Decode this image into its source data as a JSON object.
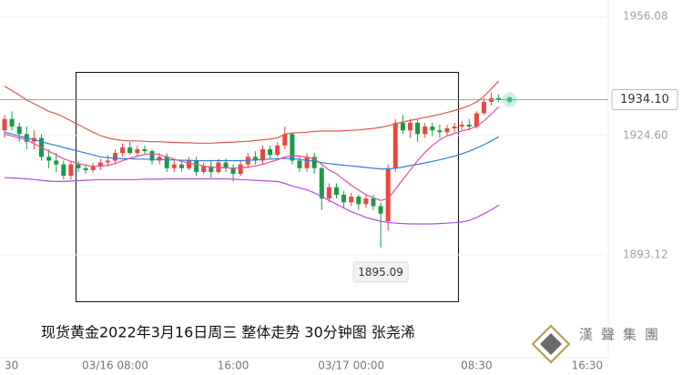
{
  "chart_data": {
    "type": "candlestick",
    "title": "现货黄金2022年3月16日周三  整体走势  30分钟图  张尧浠",
    "watermark": "漢聲集團",
    "categories": [
      "30",
      null,
      null,
      null,
      null,
      null,
      null,
      null,
      null,
      null,
      null,
      null,
      null,
      null,
      null,
      "03/16 08:00",
      null,
      null,
      null,
      null,
      null,
      null,
      null,
      null,
      null,
      null,
      null,
      null,
      null,
      null,
      null,
      "16:00",
      null,
      null,
      null,
      null,
      null,
      null,
      null,
      null,
      null,
      null,
      null,
      null,
      null,
      null,
      null,
      "03/17 00:00",
      null,
      null,
      null,
      null,
      null,
      null,
      null,
      null,
      null,
      null,
      null,
      null,
      null,
      null,
      null,
      null,
      "08:30",
      null,
      null,
      null,
      null,
      null,
      null,
      null,
      null,
      null,
      null,
      null,
      null,
      null,
      null,
      "16:30"
    ],
    "candles": {
      "up_color": "#e8483f",
      "down_color": "#1a9a48",
      "open": [
        1926,
        1929,
        1927,
        1925,
        1923,
        1924,
        1919,
        1918,
        1917,
        1914,
        1917,
        1916,
        1915.5,
        1916.5,
        1917.5,
        1918,
        1920,
        1921.5,
        1920,
        1921,
        1920.5,
        1918,
        1919,
        1916,
        1917,
        1916,
        1918,
        1915,
        1916.5,
        1915,
        1917.5,
        1916,
        1914.5,
        1917,
        1919,
        1918,
        1921,
        1919.5,
        1922,
        1925,
        1918,
        1916,
        1919,
        1916,
        1908,
        1911,
        1909,
        1907,
        1908.5,
        1906.5,
        1908,
        1906,
        1902,
        1916,
        1928,
        1926,
        1928,
        1925,
        1927,
        1926,
        1925.5,
        1926.5,
        1927,
        1927.5,
        1927,
        1930.5,
        1933.5,
        1934.5,
        null,
        null,
        null,
        null,
        null,
        null,
        null,
        null,
        null,
        null,
        null,
        null
      ],
      "high": [
        1930,
        1931,
        1928,
        1927,
        1926,
        1925,
        1921,
        1920,
        1918,
        1918,
        1918,
        1917,
        1917.5,
        1918.5,
        1919.5,
        1921,
        1922.5,
        1923,
        1922,
        1922,
        1921,
        1920,
        1920,
        1918,
        1918,
        1919,
        1919,
        1917.5,
        1918,
        1918.5,
        1918.5,
        1917,
        1918,
        1920,
        1920.5,
        1922,
        1922,
        1923,
        1927,
        1925.5,
        1919,
        1920,
        1920,
        1916.5,
        1912,
        1912,
        1910,
        1909.5,
        1909,
        1909,
        1909,
        1907,
        1917,
        1929,
        1930,
        1929,
        1929,
        1928,
        1928,
        1927.5,
        1927.5,
        1928,
        1928.5,
        1929,
        1931,
        1934.5,
        1936,
        1935.5,
        null,
        null,
        null,
        null,
        null,
        null,
        null,
        null,
        null,
        null,
        null,
        null
      ],
      "low": [
        1924,
        1926,
        1923,
        1921,
        1921,
        1918,
        1916,
        1915,
        1913,
        1913,
        1915,
        1914.5,
        1914.8,
        1915.5,
        1916.5,
        1917,
        1919,
        1919.5,
        1919,
        1919.5,
        1917,
        1917,
        1915,
        1915,
        1915,
        1915.5,
        1914,
        1914.5,
        1913.5,
        1914.5,
        1915,
        1912.5,
        1914,
        1916,
        1917,
        1917,
        1918.5,
        1919,
        1921,
        1917,
        1915,
        1915,
        1914.5,
        1905,
        1907,
        1908,
        1905.5,
        1906,
        1905,
        1905.5,
        1905,
        1895.09,
        1899.5,
        1915,
        1925,
        1924,
        1923,
        1924,
        1924.5,
        1924,
        1924.5,
        1925.5,
        1926,
        1926,
        1926.5,
        1930,
        1932.5,
        1933.5,
        null,
        null,
        null,
        null,
        null,
        null,
        null,
        null,
        null,
        null,
        null,
        null
      ],
      "close": [
        1929,
        1927,
        1925,
        1923,
        1924,
        1919,
        1918,
        1917,
        1914,
        1917,
        1916,
        1915.5,
        1916.5,
        1917.5,
        1918,
        1920,
        1921.5,
        1920,
        1921,
        1920.5,
        1918,
        1919,
        1916,
        1917,
        1916,
        1918,
        1915,
        1916.5,
        1915,
        1917.5,
        1916,
        1914.5,
        1917,
        1919,
        1918,
        1921,
        1919.5,
        1922,
        1925,
        1918,
        1916,
        1919,
        1916,
        1908,
        1911,
        1909,
        1907,
        1908.5,
        1906.5,
        1908,
        1906,
        1904,
        1916,
        1928,
        1926,
        1928,
        1925,
        1927,
        1926,
        1925.5,
        1926.5,
        1927,
        1927.5,
        1927,
        1930.5,
        1933.5,
        1934.5,
        1934.1,
        null,
        null,
        null,
        null,
        null,
        null,
        null,
        null,
        null,
        null,
        null,
        null
      ],
      "low_label": "1895.09",
      "last_close_label": "1934.10"
    },
    "lines": [
      {
        "color": "#dd5a4f",
        "values": [
          1937.6,
          1936.5,
          1935.3,
          1934,
          1933,
          1932,
          1931,
          1930.4,
          1929.5,
          1928.5,
          1927.5,
          1926.5,
          1925.5,
          1924.6,
          1924,
          1923.6,
          1923.3,
          1923.2,
          1923.2,
          1923.1,
          1923,
          1923,
          1922.9,
          1922.8,
          1922.7,
          1922.7,
          1922.6,
          1922.6,
          1922.6,
          1922.7,
          1922.8,
          1922.9,
          1923,
          1923.1,
          1923.3,
          1923.5,
          1923.7,
          1924,
          1925,
          1925.3,
          1925.4,
          1925.5,
          1925.7,
          1925.8,
          1925.8,
          1925.8,
          1925.9,
          1926,
          1926.1,
          1926.3,
          1926.5,
          1926.8,
          1927.2,
          1927.7,
          1928.2,
          1928.6,
          1929,
          1929.4,
          1929.8,
          1930.2,
          1930.7,
          1931.2,
          1931.8,
          1932.5,
          1933.5,
          1935,
          1937,
          1939,
          null,
          null,
          null,
          null,
          null,
          null,
          null,
          null,
          null,
          null,
          null,
          null
        ]
      },
      {
        "color": "#2f7fd6",
        "values": [
          1925.5,
          1925,
          1924.5,
          1924,
          1923.5,
          1923,
          1922.5,
          1922,
          1921.5,
          1921,
          1920.5,
          1920,
          1919.5,
          1919,
          1918.8,
          1918.6,
          1918.5,
          1918.5,
          1918.4,
          1918.4,
          1918.3,
          1918.3,
          1918.2,
          1918.2,
          1918.1,
          1918.1,
          1918,
          1918,
          1918,
          1918,
          1918,
          1918,
          1918,
          1918.1,
          1918.2,
          1918.3,
          1918.4,
          1918.5,
          1918.6,
          1918.5,
          1918.3,
          1918.1,
          1917.8,
          1917.5,
          1917.2,
          1917,
          1916.8,
          1916.6,
          1916.4,
          1916.2,
          1916,
          1915.8,
          1915.8,
          1916,
          1916.3,
          1916.7,
          1917,
          1917.4,
          1917.8,
          1918.2,
          1918.7,
          1919.2,
          1919.8,
          1920.5,
          1921.3,
          1922.2,
          1923.2,
          1924.3,
          null,
          null,
          null,
          null,
          null,
          null,
          null,
          null,
          null,
          null,
          null,
          null
        ]
      },
      {
        "color": "#b04fe0",
        "values": [
          1913.5,
          1913.4,
          1913.3,
          1913.2,
          1913,
          1912.8,
          1912.6,
          1912.5,
          1912.5,
          1912.6,
          1912.7,
          1912.8,
          1912.9,
          1913,
          1913,
          1913,
          1913,
          1913,
          1913,
          1913.1,
          1913.1,
          1913.1,
          1913.2,
          1913.2,
          1913.2,
          1913.2,
          1913.2,
          1913.2,
          1913.2,
          1913.2,
          1913.2,
          1913.1,
          1913,
          1912.9,
          1912.8,
          1912.7,
          1912.6,
          1912.5,
          1912,
          1911.3,
          1910.8,
          1910.3,
          1909.5,
          1908.5,
          1907.5,
          1906.5,
          1905.5,
          1904.5,
          1903.8,
          1903,
          1902.5,
          1902,
          1901.7,
          1901.5,
          1901.4,
          1901.3,
          1901.3,
          1901.3,
          1901.3,
          1901.4,
          1901.5,
          1901.6,
          1901.8,
          1902.2,
          1903,
          1904,
          1905,
          1906.3,
          null,
          null,
          null,
          null,
          null,
          null,
          null,
          null,
          null,
          null,
          null,
          null
        ]
      },
      {
        "color": "#e6509a",
        "values": [
          1925,
          1924.5,
          1924,
          1923.5,
          1922.5,
          1921.5,
          1920.5,
          1919.5,
          1918.5,
          1917.8,
          1917.2,
          1916.8,
          1916.5,
          1916.5,
          1916.8,
          1917.2,
          1918,
          1918.6,
          1919.2,
          1919.6,
          1919.8,
          1919.6,
          1919,
          1918.4,
          1917.8,
          1917.3,
          1917,
          1916.6,
          1916.3,
          1916.2,
          1916.1,
          1916,
          1916.1,
          1916.3,
          1916.6,
          1917,
          1917.6,
          1918.2,
          1919,
          1919.3,
          1919.2,
          1918.9,
          1918.5,
          1917,
          1915.5,
          1914.5,
          1913,
          1911.5,
          1910.2,
          1909,
          1908.2,
          1907.5,
          1908,
          1910.5,
          1913,
          1915.5,
          1918,
          1920.2,
          1922,
          1923.5,
          1924.5,
          1925.2,
          1925.8,
          1926.3,
          1927,
          1928.5,
          1930.3,
          1932.2,
          null,
          null,
          null,
          null,
          null,
          null,
          null,
          null,
          null,
          null,
          null,
          null
        ]
      }
    ],
    "last_price_color": "#3cbf8e",
    "ylim": [
      1865.5,
      1960.4
    ],
    "yticks": [
      1893.12,
      {
        "value": 1924.6,
        "label": "1924.60"
      },
      1956.08
    ],
    "grid": true
  }
}
